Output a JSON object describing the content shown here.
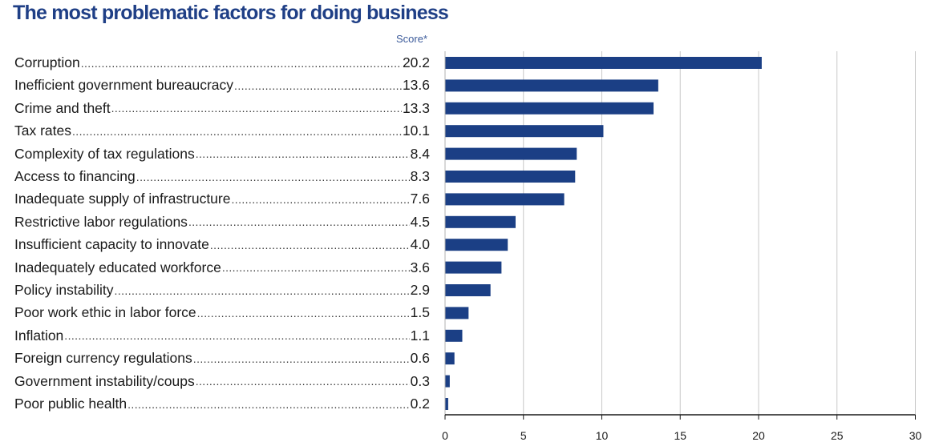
{
  "chart_data": {
    "type": "bar",
    "orientation": "horizontal",
    "title": "The most problematic factors for doing business",
    "value_header": "Score*",
    "categories": [
      "Corruption",
      "Inefficient government bureaucracy",
      "Crime and theft",
      "Tax rates",
      "Complexity of tax regulations",
      "Access to financing",
      "Inadequate supply of infrastructure",
      "Restrictive labor regulations",
      "Insufficient capacity to innovate",
      "Inadequately educated workforce",
      "Policy instability",
      "Poor work ethic in labor force",
      "Inflation",
      "Foreign currency regulations",
      "Government instability/coups",
      "Poor public health"
    ],
    "values": [
      20.2,
      13.6,
      13.3,
      10.1,
      8.4,
      8.3,
      7.6,
      4.5,
      4.0,
      3.6,
      2.9,
      1.5,
      1.1,
      0.6,
      0.3,
      0.2
    ],
    "value_labels": [
      "20.2",
      "13.6",
      "13.3",
      "10.1",
      "8.4",
      "8.3",
      "7.6",
      "4.5",
      "4.0",
      "3.6",
      "2.9",
      "1.5",
      "1.1",
      "0.6",
      "0.3",
      "0.2"
    ],
    "xlim": [
      0,
      30
    ],
    "x_ticks": [
      "0",
      "5",
      "10",
      "15",
      "20",
      "25",
      "30"
    ],
    "grid": true,
    "bar_color": "#1b3f85",
    "grid_color": "#c8c8c8"
  }
}
